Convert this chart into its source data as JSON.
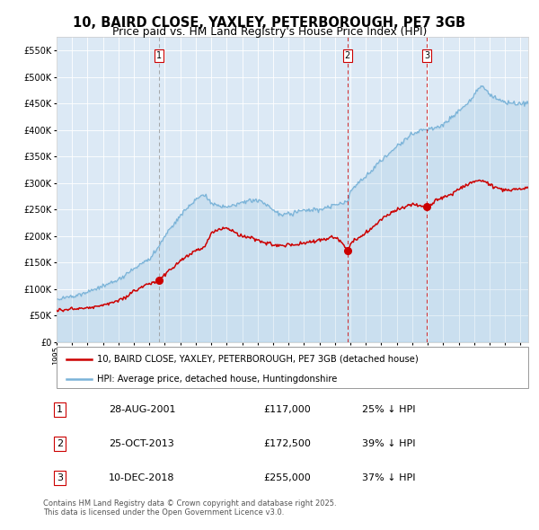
{
  "title1": "10, BAIRD CLOSE, YAXLEY, PETERBOROUGH, PE7 3GB",
  "title2": "Price paid vs. HM Land Registry's House Price Index (HPI)",
  "legend_red": "10, BAIRD CLOSE, YAXLEY, PETERBOROUGH, PE7 3GB (detached house)",
  "legend_blue": "HPI: Average price, detached house, Huntingdonshire",
  "footnote": "Contains HM Land Registry data © Crown copyright and database right 2025.\nThis data is licensed under the Open Government Licence v3.0.",
  "sale1_date": "28-AUG-2001",
  "sale1_price": 117000,
  "sale1_pct": "25% ↓ HPI",
  "sale1_year": 2001.65,
  "sale2_date": "25-OCT-2013",
  "sale2_price": 172500,
  "sale2_pct": "39% ↓ HPI",
  "sale2_year": 2013.81,
  "sale3_date": "10-DEC-2018",
  "sale3_price": 255000,
  "sale3_pct": "37% ↓ HPI",
  "sale3_year": 2018.94,
  "ylim": [
    0,
    575000
  ],
  "yticks": [
    0,
    50000,
    100000,
    150000,
    200000,
    250000,
    300000,
    350000,
    400000,
    450000,
    500000,
    550000
  ],
  "bg_color": "#dce9f5",
  "red_color": "#cc0000",
  "blue_color": "#7ab3d8",
  "vline_color1": "#999999",
  "vline_color2": "#cc0000"
}
